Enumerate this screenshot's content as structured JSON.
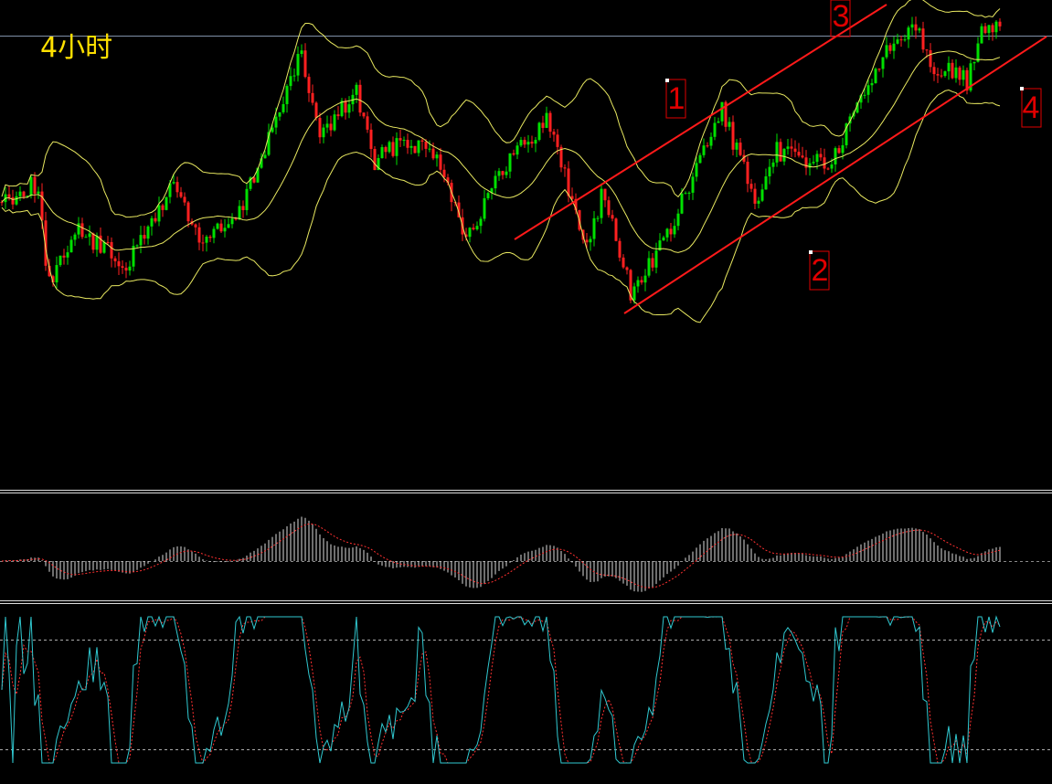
{
  "header": {
    "title": "4小时"
  },
  "labels": [
    "1",
    "2",
    "3",
    "4"
  ]
}
